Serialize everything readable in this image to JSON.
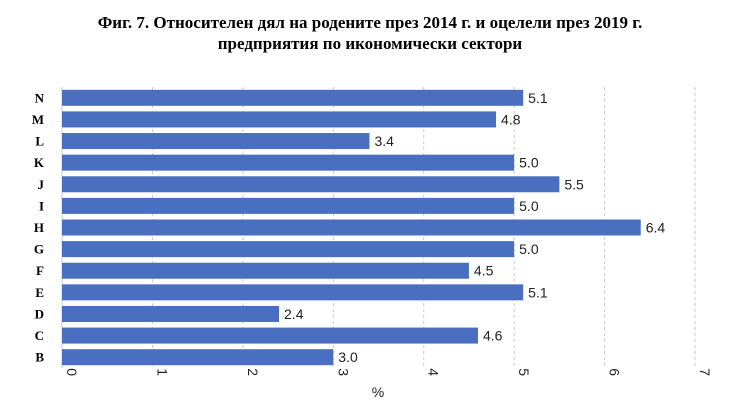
{
  "chart_data": {
    "type": "bar",
    "orientation": "horizontal",
    "title_lines": [
      "Фиг. 7. Относителен дял на родените през 2014 г. и оцелели през 2019 г.",
      "предприятия по икономически сектори"
    ],
    "categories": [
      "N",
      "M",
      "L",
      "K",
      "J",
      "I",
      "H",
      "G",
      "F",
      "E",
      "D",
      "C",
      "B"
    ],
    "values": [
      5.1,
      4.8,
      3.4,
      5.0,
      5.5,
      5.0,
      6.4,
      5.0,
      4.5,
      5.1,
      2.4,
      4.6,
      3.0
    ],
    "value_labels": [
      "5.1",
      "4.8",
      "3.4",
      "5.0",
      "5.5",
      "5.0",
      "6.4",
      "5.0",
      "4.5",
      "5.1",
      "2.4",
      "4.6",
      "3.0"
    ],
    "xlabel": "%",
    "xlim": [
      0,
      7
    ],
    "x_ticks": [
      "0",
      "1",
      "2",
      "3",
      "4",
      "5",
      "6",
      "7"
    ],
    "grid": "vertical dashed",
    "bar_color": "#4a6fc1"
  }
}
